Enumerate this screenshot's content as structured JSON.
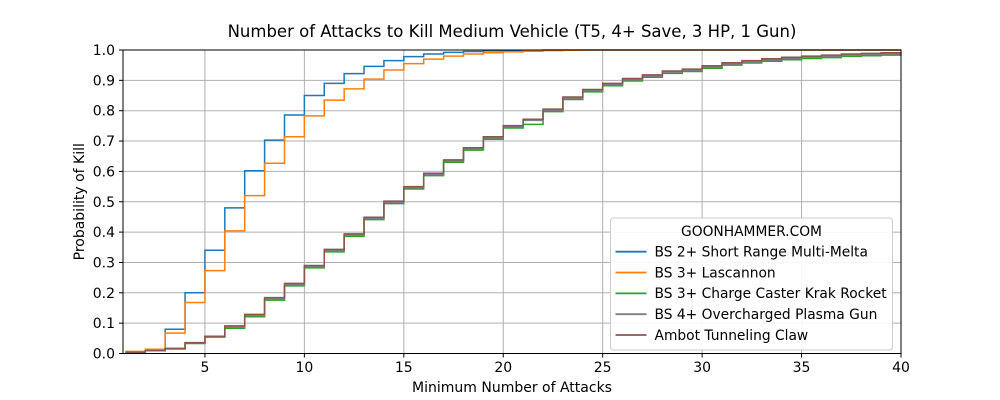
{
  "figure": {
    "title": "Number of Attacks to Kill Medium Vehicle (T5, 4+ Save, 3 HP, 1 Gun)",
    "background": "#ffffff"
  },
  "chart_data": {
    "type": "line",
    "step": "post",
    "title": "Number of Attacks to Kill Medium Vehicle (T5, 4+ Save, 3 HP, 1 Gun)",
    "xlabel": "Minimum Number of Attacks",
    "ylabel": "Probability of Kill",
    "xlim": [
      0.88,
      40
    ],
    "ylim": [
      0,
      1
    ],
    "xticks": [
      5,
      10,
      15,
      20,
      25,
      30,
      35,
      40
    ],
    "yticks": [
      0.0,
      0.1,
      0.2,
      0.3,
      0.4,
      0.5,
      0.6,
      0.7,
      0.8,
      0.9,
      1.0
    ],
    "grid": true,
    "grid_color": "#b0b0b0",
    "spine_color": "#000000",
    "legend": {
      "title": "GOONHAMMER.COM",
      "position": "lower right",
      "border_color": "#cccccc",
      "background": "#ffffff"
    },
    "x": [
      1,
      2,
      3,
      4,
      5,
      6,
      7,
      8,
      9,
      10,
      11,
      12,
      13,
      14,
      15,
      16,
      17,
      18,
      19,
      20,
      21,
      22,
      23,
      24,
      25,
      26,
      27,
      28,
      29,
      30,
      31,
      32,
      33,
      34,
      35,
      36,
      37,
      38,
      39,
      40
    ],
    "series": [
      {
        "name": "BS 2+ Short Range Multi-Melta",
        "color": "#1f77b4",
        "values": [
          0.004,
          0.012,
          0.08,
          0.2,
          0.34,
          0.48,
          0.602,
          0.703,
          0.786,
          0.85,
          0.89,
          0.922,
          0.946,
          0.965,
          0.978,
          0.987,
          0.992,
          0.995,
          0.997,
          0.998,
          0.999,
          1.0,
          1.0,
          1.0,
          1.0,
          1.0,
          1.0,
          1.0,
          1.0,
          1.0,
          1.0,
          1.0,
          1.0,
          1.0,
          1.0,
          1.0,
          1.0,
          1.0,
          1.0,
          1.0
        ]
      },
      {
        "name": "BS 3+ Lascannon",
        "color": "#ff7f0e",
        "values": [
          0.007,
          0.014,
          0.067,
          0.168,
          0.273,
          0.404,
          0.52,
          0.627,
          0.714,
          0.783,
          0.835,
          0.872,
          0.904,
          0.934,
          0.955,
          0.97,
          0.98,
          0.987,
          0.991,
          0.994,
          0.996,
          0.998,
          0.999,
          1.0,
          1.0,
          1.0,
          1.0,
          1.0,
          1.0,
          1.0,
          1.0,
          1.0,
          1.0,
          1.0,
          1.0,
          1.0,
          1.0,
          1.0,
          1.0,
          1.0
        ]
      },
      {
        "name": "BS 3+ Charge Caster Krak Rocket",
        "color": "#2ca02c",
        "values": [
          0.003,
          0.009,
          0.015,
          0.033,
          0.054,
          0.083,
          0.121,
          0.176,
          0.223,
          0.282,
          0.335,
          0.386,
          0.441,
          0.494,
          0.542,
          0.586,
          0.63,
          0.67,
          0.706,
          0.743,
          0.755,
          0.797,
          0.837,
          0.862,
          0.882,
          0.898,
          0.91,
          0.923,
          0.929,
          0.94,
          0.95,
          0.957,
          0.963,
          0.968,
          0.972,
          0.975,
          0.979,
          0.981,
          0.983,
          0.984
        ]
      },
      {
        "name": "BS 4+ Overcharged Plasma Gun",
        "color": "#7f7f7f",
        "values": [
          0.003,
          0.009,
          0.016,
          0.035,
          0.056,
          0.087,
          0.125,
          0.18,
          0.227,
          0.286,
          0.339,
          0.39,
          0.445,
          0.498,
          0.546,
          0.59,
          0.634,
          0.674,
          0.71,
          0.747,
          0.768,
          0.801,
          0.841,
          0.866,
          0.886,
          0.902,
          0.914,
          0.927,
          0.933,
          0.944,
          0.954,
          0.961,
          0.967,
          0.972,
          0.976,
          0.979,
          0.983,
          0.985,
          0.987,
          0.988
        ]
      },
      {
        "name": "Ambot Tunneling Claw",
        "color": "#8c564b",
        "values": [
          0.004,
          0.01,
          0.017,
          0.036,
          0.057,
          0.091,
          0.129,
          0.184,
          0.231,
          0.29,
          0.343,
          0.394,
          0.449,
          0.502,
          0.55,
          0.594,
          0.638,
          0.678,
          0.714,
          0.751,
          0.772,
          0.805,
          0.845,
          0.87,
          0.89,
          0.906,
          0.918,
          0.931,
          0.937,
          0.948,
          0.958,
          0.965,
          0.971,
          0.976,
          0.98,
          0.983,
          0.987,
          0.989,
          0.991,
          0.992
        ]
      }
    ]
  }
}
